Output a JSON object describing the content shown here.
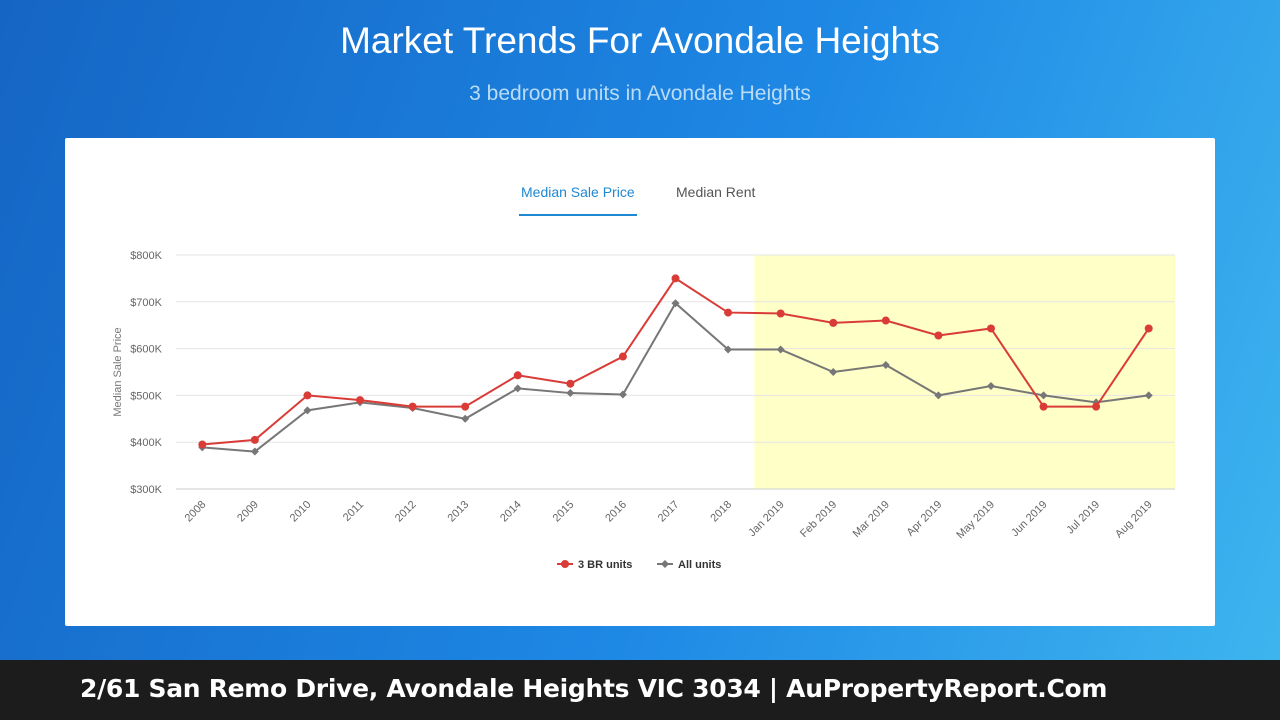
{
  "header": {
    "title": "Market Trends For Avondale Heights",
    "subtitle": "3 bedroom units in Avondale Heights"
  },
  "tabs": [
    {
      "label": "Median Sale Price",
      "active": true
    },
    {
      "label": "Median Rent",
      "active": false
    }
  ],
  "chart_data": {
    "type": "line",
    "ylabel": "Median Sale Price",
    "ylim": [
      300000,
      800000
    ],
    "yticks": [
      {
        "value": 300000,
        "label": "$300K"
      },
      {
        "value": 400000,
        "label": "$400K"
      },
      {
        "value": 500000,
        "label": "$500K"
      },
      {
        "value": 600000,
        "label": "$600K"
      },
      {
        "value": 700000,
        "label": "$700K"
      },
      {
        "value": 800000,
        "label": "$800K"
      }
    ],
    "categories": [
      "2008",
      "2009",
      "2010",
      "2011",
      "2012",
      "2013",
      "2014",
      "2015",
      "2016",
      "2017",
      "2018",
      "Jan 2019",
      "Feb 2019",
      "Mar 2019",
      "Apr 2019",
      "May 2019",
      "Jun 2019",
      "Jul 2019",
      "Aug 2019"
    ],
    "highlight_range": [
      "Jan 2019",
      "Aug 2019"
    ],
    "highlight_color": "#ffffc8",
    "grid": true,
    "legend_position": "bottom-center",
    "series": [
      {
        "name": "3 BR units",
        "color": "#d93c37",
        "marker": "circle",
        "values": [
          395000,
          405000,
          500000,
          490000,
          476000,
          476000,
          543000,
          525000,
          583000,
          750000,
          677000,
          675000,
          655000,
          660000,
          628000,
          643000,
          476000,
          476000,
          643000
        ]
      },
      {
        "name": "All units",
        "color": "#777777",
        "marker": "diamond",
        "values": [
          389000,
          380000,
          468000,
          485000,
          473000,
          450000,
          515000,
          505000,
          502000,
          697000,
          598000,
          598000,
          550000,
          565000,
          500000,
          520000,
          500000,
          485000,
          500000
        ]
      }
    ]
  },
  "footer": {
    "text": "2/61 San Remo Drive, Avondale Heights VIC 3034 | AuPropertyReport.Com"
  }
}
